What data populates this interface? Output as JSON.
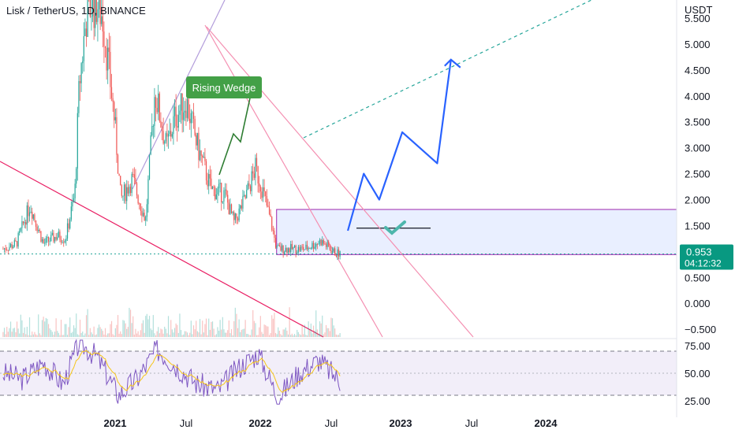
{
  "header": {
    "title": "Lisk / TetherUS, 1D, BINANCE"
  },
  "price_axis": {
    "unit": "USDT",
    "ticks": [
      "5.500",
      "5.000",
      "4.500",
      "4.000",
      "3.500",
      "3.000",
      "2.500",
      "2.000",
      "1.500",
      "1.000",
      "0.500",
      "0.000",
      "−0.500"
    ]
  },
  "rsi_axis": {
    "ticks": [
      "75.00",
      "50.00",
      "25.00"
    ]
  },
  "time_axis": [
    {
      "label": "2021",
      "bold": true
    },
    {
      "label": "Jul",
      "bold": false
    },
    {
      "label": "2022",
      "bold": true
    },
    {
      "label": "Jul",
      "bold": false
    },
    {
      "label": "2023",
      "bold": true
    },
    {
      "label": "Jul",
      "bold": false
    },
    {
      "label": "2024",
      "bold": true
    }
  ],
  "last_price": {
    "price": "0.953",
    "countdown": "04:12:32"
  },
  "annotation": {
    "label": "Rising Wedge"
  },
  "colors": {
    "up": "#26a69a",
    "down": "#ef5350",
    "projection": "#2962ff",
    "box": "#9c27b0",
    "rsi": "#7e57c2",
    "rsi_ma": "#f5c518",
    "badge": "#089981",
    "wedge_label_bg": "#43a047"
  },
  "chart_data": {
    "type": "line",
    "price": {
      "x": [
        "2020-09-01",
        "2020-10-01",
        "2020-11-01",
        "2020-12-01",
        "2021-01-01",
        "2021-01-20",
        "2021-02-10",
        "2021-02-20",
        "2021-03-10",
        "2021-04-01",
        "2021-04-15",
        "2021-05-10",
        "2021-05-25",
        "2021-06-20",
        "2021-07-20",
        "2021-08-10",
        "2021-09-05",
        "2021-09-25",
        "2021-10-20",
        "2021-11-15",
        "2021-12-15",
        "2022-01-15",
        "2022-02-05",
        "2022-03-01",
        "2022-03-25",
        "2022-04-10",
        "2022-05-01",
        "2022-05-12",
        "2022-06-15",
        "2022-07-15",
        "2022-08-20",
        "2022-09-20",
        "2022-10-05"
      ],
      "values": [
        1.05,
        1.15,
        1.9,
        1.15,
        1.3,
        1.25,
        2.1,
        4.2,
        5.7,
        5.8,
        5.5,
        3.6,
        2.0,
        2.4,
        1.6,
        4.1,
        3.0,
        3.6,
        3.9,
        3.0,
        2.2,
        2.1,
        1.55,
        2.0,
        2.6,
        2.2,
        1.5,
        1.05,
        1.05,
        1.05,
        1.2,
        0.98,
        0.95
      ]
    },
    "projection": {
      "x": [
        "2022-10-20",
        "2022-11-25",
        "2022-12-30",
        "2023-02-20",
        "2023-05-10",
        "2023-06-10",
        "2023-07-10"
      ],
      "values": [
        1.4,
        2.5,
        2.0,
        3.3,
        2.7,
        4.7,
        4.6
      ]
    },
    "support_box": {
      "x_range": [
        "2022-05-12",
        "2024-11-01"
      ],
      "y_range": [
        0.94,
        1.81
      ]
    },
    "ylim": [
      -0.65,
      5.85
    ],
    "xlim": [
      "2020-08-25",
      "2024-11-01"
    ],
    "rsi": {
      "x": [
        "2020-09-01",
        "2020-10-15",
        "2020-12-01",
        "2021-01-15",
        "2021-02-20",
        "2021-04-01",
        "2021-05-20",
        "2021-07-01",
        "2021-08-15",
        "2021-10-01",
        "2021-11-15",
        "2022-01-01",
        "2022-02-15",
        "2022-04-01",
        "2022-05-15",
        "2022-07-01",
        "2022-08-15",
        "2022-10-05"
      ],
      "values": [
        50,
        45,
        60,
        40,
        78,
        65,
        30,
        45,
        72,
        55,
        40,
        35,
        55,
        68,
        28,
        50,
        62,
        42
      ],
      "ylim": [
        20,
        80
      ],
      "bands": [
        70,
        30
      ]
    },
    "grid": false,
    "legend": "none"
  }
}
